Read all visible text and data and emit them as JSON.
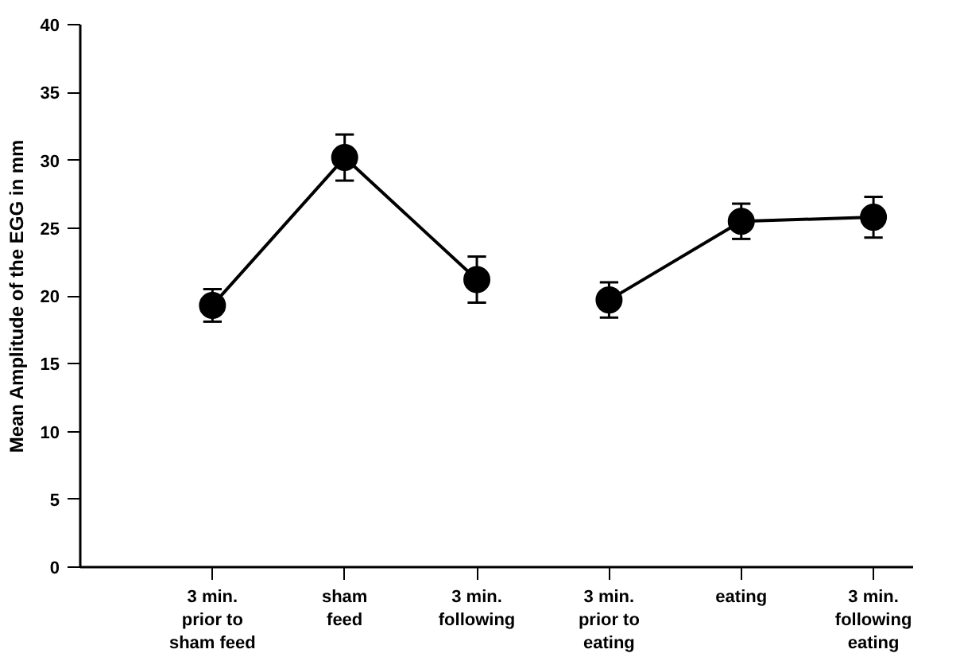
{
  "chart_data": {
    "type": "line",
    "ylabel": "Mean Amplitude of the EGG in mm",
    "categories": [
      "3 min.\nprior to\nsham feed",
      "sham\nfeed",
      "3 min.\nfollowing",
      "3 min.\nprior to\neating",
      "eating",
      "3 min.\nfollowing\neating"
    ],
    "series": [
      {
        "color": "#000000",
        "values": [
          19.3,
          30.2,
          21.2,
          null,
          null,
          null
        ],
        "errors": [
          1.2,
          1.7,
          1.7,
          null,
          null,
          null
        ]
      },
      {
        "color": "#000000",
        "values": [
          null,
          null,
          null,
          19.7,
          25.5,
          25.8
        ],
        "errors": [
          null,
          null,
          null,
          1.3,
          1.3,
          1.5
        ]
      }
    ],
    "ylim": [
      0,
      40
    ],
    "yticks": [
      0,
      5,
      10,
      15,
      20,
      25,
      30,
      35,
      40
    ],
    "marker": "circle",
    "line_style": "solid",
    "grid": false
  }
}
